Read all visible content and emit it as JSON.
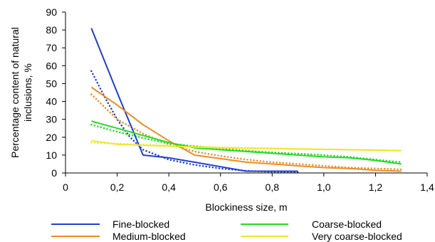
{
  "chart_data": {
    "type": "line",
    "title": "",
    "xlabel": "Blockiness size, m",
    "ylabel_lines": [
      "Percentage content of natural",
      "inclusions, %"
    ],
    "xlim": [
      0,
      1.4
    ],
    "ylim": [
      0,
      90
    ],
    "x_ticks": [
      0,
      0.2,
      0.4,
      0.6,
      0.8,
      1.0,
      1.2,
      1.4
    ],
    "x_tick_labels": [
      "0",
      "0,2",
      "0,4",
      "0,6",
      "0,8",
      "1,0",
      "1,2",
      "1,4"
    ],
    "y_ticks": [
      0,
      10,
      20,
      30,
      40,
      50,
      60,
      70,
      80,
      90
    ],
    "y_tick_labels": [
      "0",
      "10",
      "20",
      "30",
      "40",
      "50",
      "60",
      "70",
      "80",
      "90"
    ],
    "grid": "none",
    "legend_position": "bottom",
    "series": [
      {
        "name": "Fine-blocked",
        "color": "#1f3fd1",
        "style": "solid",
        "x": [
          0.1,
          0.2,
          0.3,
          0.4,
          0.5,
          0.6,
          0.7,
          0.8,
          0.9
        ],
        "y": [
          81,
          45,
          10,
          8.5,
          6,
          3.5,
          1,
          1,
          1
        ]
      },
      {
        "name": "Medium-blocked",
        "color": "#f08c1e",
        "style": "solid",
        "x": [
          0.1,
          0.2,
          0.3,
          0.4,
          0.5,
          0.6,
          0.7,
          0.8,
          0.9,
          1.0,
          1.1,
          1.2,
          1.3
        ],
        "y": [
          48,
          38,
          27,
          18,
          10,
          8,
          6,
          5,
          4,
          3,
          2.5,
          1.5,
          1
        ]
      },
      {
        "name": "Coarse-blocked",
        "color": "#22dd22",
        "style": "solid",
        "x": [
          0.1,
          0.2,
          0.3,
          0.4,
          0.5,
          0.6,
          0.7,
          0.8,
          0.9,
          1.0,
          1.1,
          1.2,
          1.3
        ],
        "y": [
          29,
          25,
          21,
          17,
          14,
          13,
          12,
          11,
          10,
          9,
          8.5,
          7,
          5
        ]
      },
      {
        "name": "Very coarse-blocked",
        "color": "#f0e62a",
        "style": "solid",
        "x": [
          0.1,
          0.2,
          0.3,
          0.4,
          0.5,
          0.6,
          0.7,
          0.8,
          0.9,
          1.0,
          1.1,
          1.2,
          1.3
        ],
        "y": [
          18,
          16,
          15.5,
          15,
          14.5,
          14,
          13.8,
          13.6,
          13.4,
          13.2,
          13,
          12.8,
          12.5
        ]
      },
      {
        "name": "",
        "color": "#1f3fd1",
        "style": "dotted",
        "x": [
          0.1,
          0.15,
          0.2,
          0.25,
          0.3,
          0.4,
          0.5,
          0.6,
          0.7,
          0.8,
          0.9
        ],
        "y": [
          57,
          43,
          30,
          20,
          13,
          7.5,
          4.5,
          2.5,
          1.2,
          0.6,
          0.4
        ]
      },
      {
        "name": "",
        "color": "#f08c1e",
        "style": "dotted",
        "x": [
          0.1,
          0.2,
          0.3,
          0.4,
          0.5,
          0.6,
          0.7,
          0.8,
          0.9,
          1.0,
          1.1,
          1.2,
          1.3
        ],
        "y": [
          44,
          30,
          22,
          16,
          12,
          9.5,
          7.5,
          6,
          5,
          4,
          3,
          2.5,
          2
        ]
      },
      {
        "name": "",
        "color": "#22dd22",
        "style": "dotted",
        "x": [
          0.1,
          0.2,
          0.3,
          0.4,
          0.5,
          0.6,
          0.7,
          0.8,
          0.9,
          1.0,
          1.1,
          1.2,
          1.3
        ],
        "y": [
          27,
          23,
          19.5,
          16.5,
          15,
          13.5,
          12.5,
          11.5,
          10.8,
          10,
          9,
          7.5,
          6
        ]
      },
      {
        "name": "",
        "color": "#f0e62a",
        "style": "dotted",
        "x": [
          0.1,
          0.3,
          0.5,
          0.7,
          0.9,
          1.1,
          1.3
        ],
        "y": [
          17,
          15.8,
          14.8,
          14,
          13.5,
          13,
          12.5
        ]
      }
    ],
    "legend": [
      {
        "label": "Fine-blocked",
        "color": "#1f3fd1"
      },
      {
        "label": "Coarse-blocked",
        "color": "#22dd22"
      },
      {
        "label": "Medium-blocked",
        "color": "#f08c1e"
      },
      {
        "label": "Very coarse-blocked",
        "color": "#f0e62a"
      }
    ]
  }
}
